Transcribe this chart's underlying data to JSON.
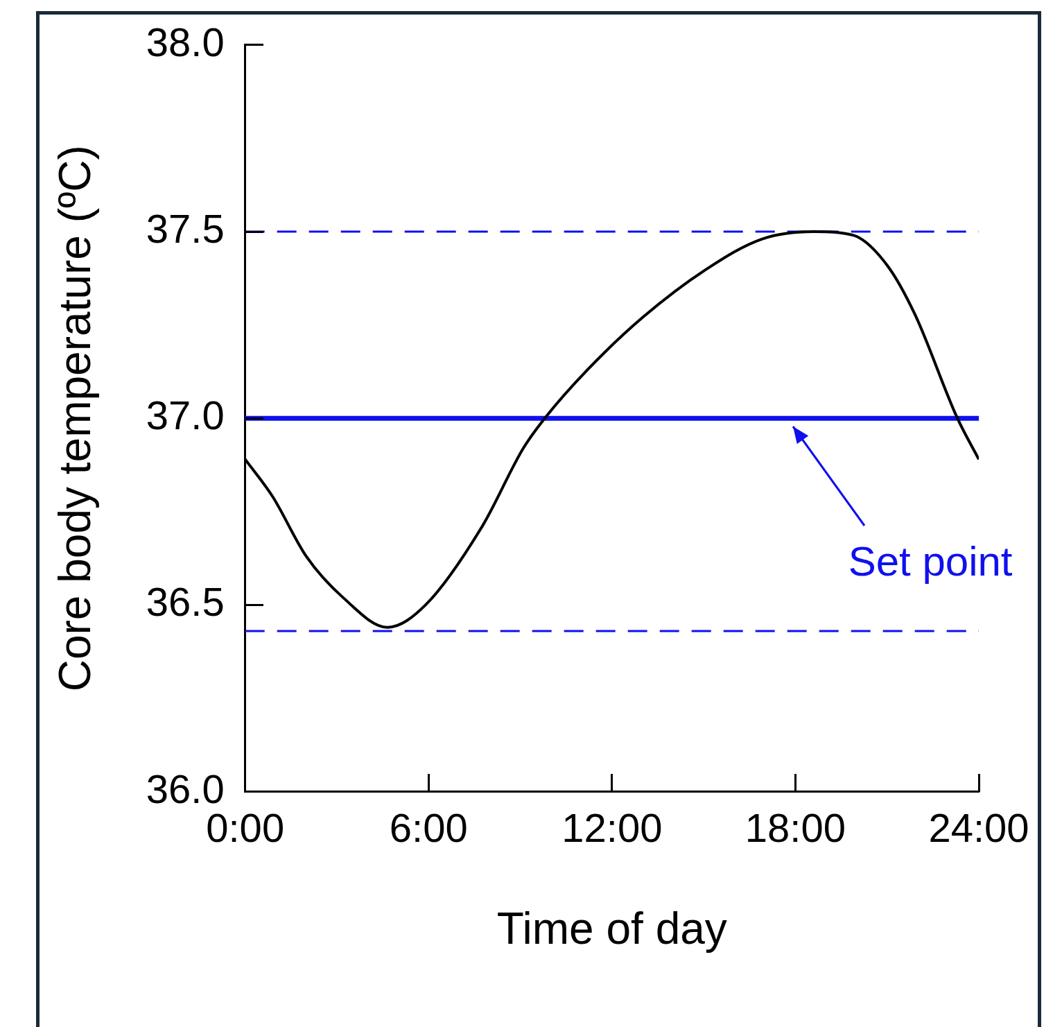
{
  "chart_data": {
    "type": "line",
    "xlabel": "Time of day",
    "ylabel": "Core body temperature (ºC)",
    "x": [
      0,
      0.9,
      2.0,
      3.2,
      4.66,
      5.9,
      7.75,
      9.1,
      9.8,
      11.2,
      13.0,
      15.1,
      16.9,
      18.6,
      19.9,
      21.0,
      21.9,
      23.3,
      24
    ],
    "series": [
      {
        "color": "#000000",
        "values": [
          36.89,
          36.79,
          36.63,
          36.52,
          36.44,
          36.5,
          36.71,
          36.92,
          37.0,
          37.13,
          37.27,
          37.4,
          37.48,
          37.5,
          37.49,
          37.41,
          37.28,
          37.0,
          36.89
        ]
      }
    ],
    "xlim": [
      0,
      24
    ],
    "xticks": [
      {
        "value": 0,
        "label": "0:00"
      },
      {
        "value": 6,
        "label": "6:00"
      },
      {
        "value": 12,
        "label": "12:00"
      },
      {
        "value": 18,
        "label": "18:00"
      },
      {
        "value": 24,
        "label": "24:00"
      }
    ],
    "ylim": [
      36,
      38
    ],
    "yticks": [
      {
        "value": 36,
        "label": "36.0"
      },
      {
        "value": 36.5,
        "label": "36.5"
      },
      {
        "value": 37,
        "label": "37.0"
      },
      {
        "value": 37.5,
        "label": "37.5"
      },
      {
        "value": 38,
        "label": "38.0"
      }
    ],
    "ref_lines": [
      {
        "axis": "y",
        "value": 37.5,
        "color": "#1010ee",
        "line_style": "dashed"
      },
      {
        "axis": "y",
        "value": 37.0,
        "color": "#1010ee",
        "line_style": "solid"
      },
      {
        "axis": "y",
        "value": 36.43,
        "color": "#1010ee",
        "line_style": "dashed"
      }
    ],
    "annotations": [
      "Set point"
    ],
    "grid": false,
    "legend": false,
    "marker": "none",
    "line_style": "solid"
  }
}
